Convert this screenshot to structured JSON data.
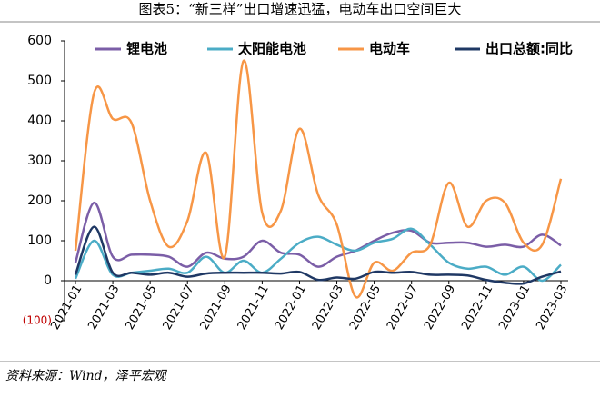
{
  "chart_data": {
    "type": "line",
    "title": "图表5：“新三样”出口增速迅猛，电动车出口空间巨大",
    "source": "资料来源：Wind，泽平宏观",
    "categories": [
      "2021-01",
      null,
      "2021-03",
      null,
      "2021-05",
      null,
      "2021-07",
      null,
      "2021-09",
      null,
      "2021-11",
      null,
      "2022-01",
      null,
      "2022-03",
      null,
      "2022-05",
      null,
      "2022-07",
      null,
      "2022-09",
      null,
      "2022-11",
      null,
      "2023-01",
      null,
      "2023-03"
    ],
    "series": [
      {
        "name": "锂电池",
        "color": "#7b5ea7",
        "values": [
          45,
          195,
          60,
          65,
          65,
          60,
          35,
          70,
          55,
          60,
          100,
          70,
          65,
          35,
          60,
          75,
          100,
          120,
          125,
          95,
          95,
          95,
          85,
          90,
          85,
          115,
          88
        ]
      },
      {
        "name": "太阳能电池",
        "color": "#4bacc6",
        "values": [
          5,
          100,
          15,
          20,
          25,
          30,
          20,
          60,
          20,
          50,
          20,
          55,
          95,
          110,
          90,
          75,
          95,
          105,
          130,
          90,
          45,
          30,
          35,
          15,
          35,
          0,
          40
        ]
      },
      {
        "name": "电动车",
        "color": "#f79646",
        "values": [
          75,
          470,
          405,
          395,
          200,
          85,
          150,
          320,
          60,
          550,
          170,
          175,
          380,
          215,
          140,
          -40,
          45,
          25,
          70,
          90,
          245,
          135,
          200,
          195,
          95,
          90,
          255
        ]
      },
      {
        "name": "出口总额:同比",
        "color": "#1f3864",
        "values": [
          15,
          135,
          20,
          20,
          15,
          20,
          10,
          18,
          20,
          20,
          20,
          18,
          22,
          2,
          8,
          5,
          22,
          20,
          22,
          15,
          15,
          13,
          2,
          -5,
          -7,
          10,
          23
        ]
      }
    ],
    "ylim": [
      -100,
      600
    ],
    "yticks": [
      {
        "value": -100,
        "label": "(100)"
      },
      0,
      100,
      200,
      300,
      400,
      500,
      600
    ],
    "grid": false
  }
}
